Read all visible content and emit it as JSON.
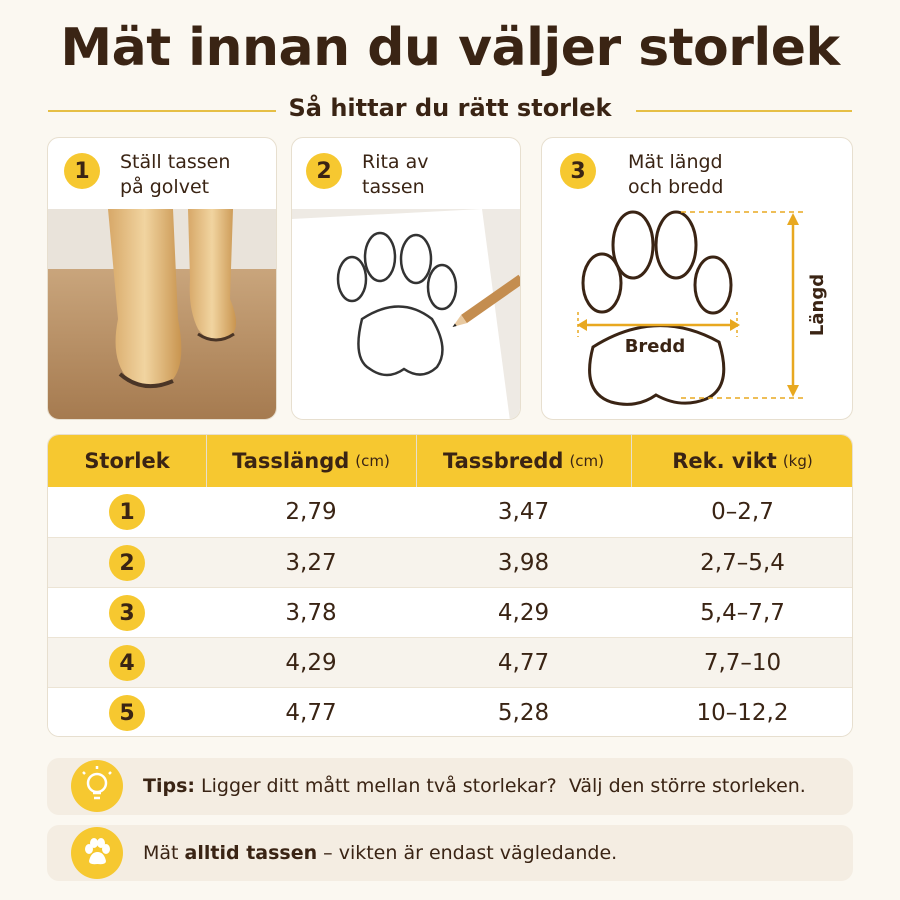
{
  "header": {
    "title": "Mät innan du väljer storlek",
    "subtitle": "Så hittar du rätt storlek"
  },
  "steps": [
    {
      "number": "1",
      "lines": [
        "Ställ tassen",
        "på golvet"
      ]
    },
    {
      "number": "2",
      "lines": [
        "Rita av",
        "tassen"
      ]
    },
    {
      "number": "3",
      "lines": [
        "Mät längd",
        "och bredd"
      ]
    }
  ],
  "diagram": {
    "width_label": "Bredd",
    "length_label": "Längd"
  },
  "table": {
    "columns": [
      {
        "name": "Storlek"
      },
      {
        "name": "Tasslängd",
        "unit": "(cm)"
      },
      {
        "name": "Tassbredd",
        "unit": "(cm)"
      },
      {
        "name": "Rek. vikt",
        "unit": "(kg)"
      }
    ],
    "rows": [
      [
        "1",
        "2,79",
        "3,47",
        "0–2,7"
      ],
      [
        "2",
        "3,27",
        "3,98",
        "2,7–5,4"
      ],
      [
        "3",
        "3,78",
        "4,29",
        "5,4–7,7"
      ],
      [
        "4",
        "4,29",
        "4,77",
        "7,7–10"
      ],
      [
        "5",
        "4,77",
        "5,28",
        "10–12,2"
      ]
    ]
  },
  "tip": {
    "label": "Tips:",
    "text": "Ligger ditt mått mellan två storlekar?  Välj den större storleken."
  },
  "note": {
    "before": "Mät ",
    "bold": "alltid tassen",
    "after": " – vikten är endast vägledande."
  }
}
